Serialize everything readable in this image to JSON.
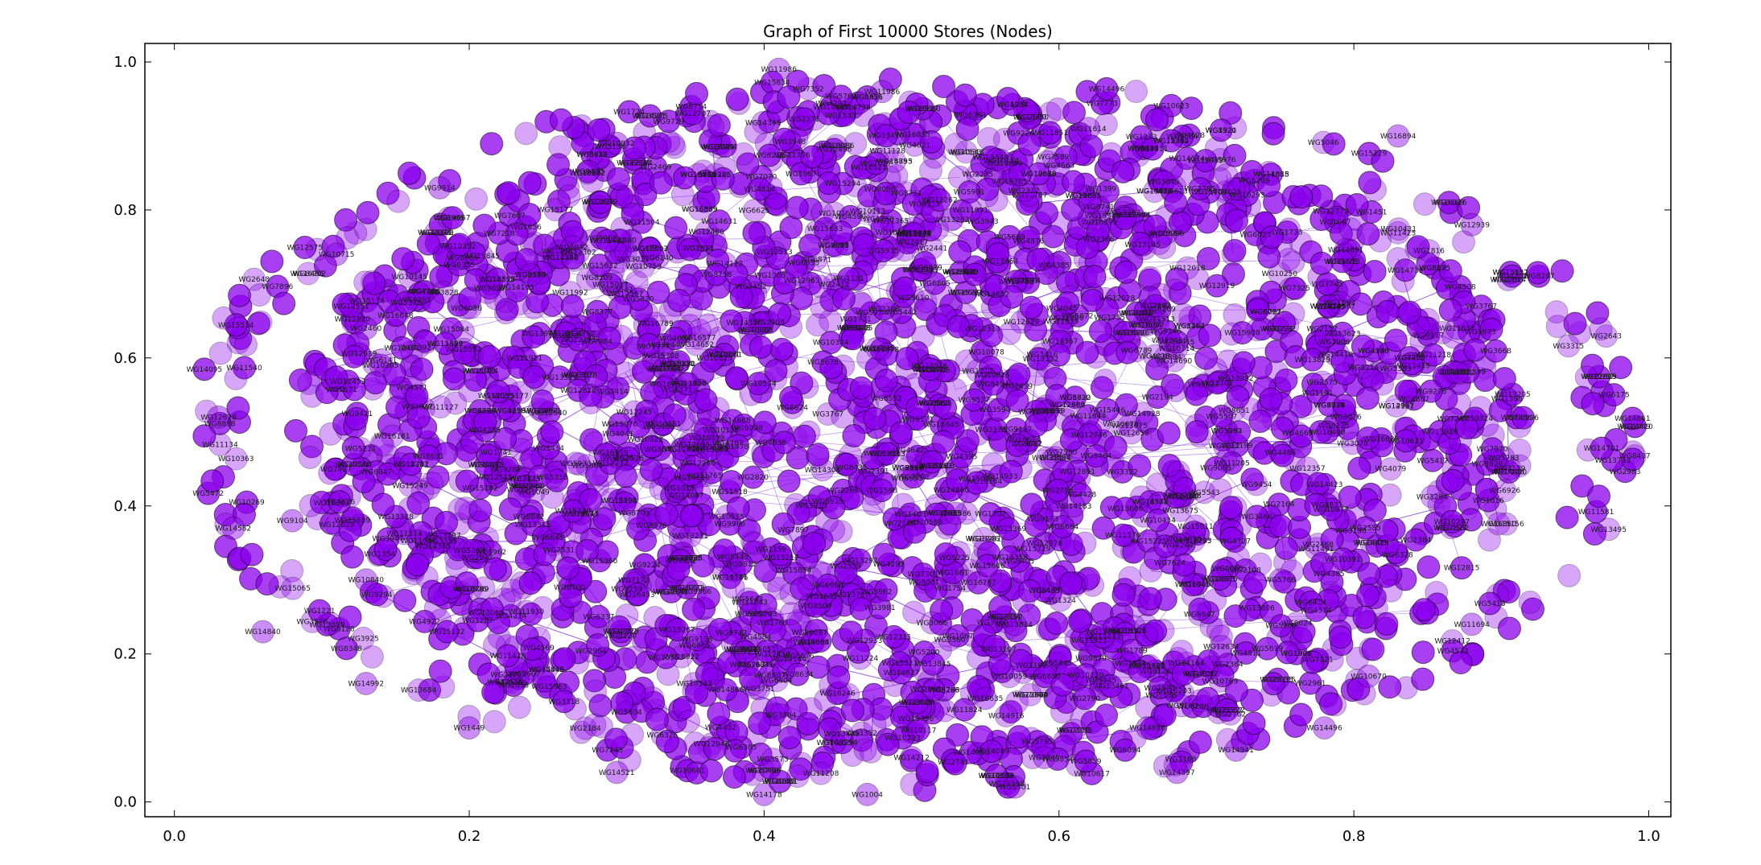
{
  "chart_data": {
    "type": "scatter",
    "title": "Graph of First 10000 Stores (Nodes)",
    "xlabel": "",
    "ylabel": "",
    "xlim": [
      -0.02,
      1.015
    ],
    "ylim": [
      -0.02,
      1.025
    ],
    "x_ticks": [
      0.0,
      0.2,
      0.4,
      0.6,
      0.8,
      1.0
    ],
    "x_tick_labels": [
      "0.0",
      "0.2",
      "0.4",
      "0.6",
      "0.8",
      "1.0"
    ],
    "y_ticks": [
      0.0,
      0.2,
      0.4,
      0.6,
      0.8,
      1.0
    ],
    "y_tick_labels": [
      "0.0",
      "0.2",
      "0.4",
      "0.6",
      "0.8",
      "1.0"
    ],
    "grid": false,
    "legend": "none",
    "node_color": "#8b00ee",
    "edge_color": "#7a1fd6",
    "node_edge_color": "#000000",
    "layout_center": [
      0.5,
      0.5
    ],
    "layout_shape": "ellipse",
    "node_label_prefix": "WG",
    "points": [
      {
        "x": 0.41,
        "y": 0.99,
        "label": "WG11986"
      },
      {
        "x": 0.3,
        "y": 0.89,
        "label": "WG10832"
      },
      {
        "x": 0.18,
        "y": 0.83,
        "label": "WG9914"
      },
      {
        "x": 0.11,
        "y": 0.74,
        "label": "WG10715"
      },
      {
        "x": 0.27,
        "y": 0.75,
        "label": "WG5942"
      },
      {
        "x": 0.17,
        "y": 0.69,
        "label": "WG7688"
      },
      {
        "x": 0.12,
        "y": 0.67,
        "label": "WG12551"
      },
      {
        "x": 0.13,
        "y": 0.64,
        "label": "WG2460"
      },
      {
        "x": 0.14,
        "y": 0.59,
        "label": "WG10305"
      },
      {
        "x": 0.48,
        "y": 0.96,
        "label": "WG11986"
      },
      {
        "x": 0.58,
        "y": 0.82,
        "label": "WG11787"
      },
      {
        "x": 0.54,
        "y": 0.8,
        "label": "WG11991"
      },
      {
        "x": 0.62,
        "y": 0.91,
        "label": "WG11614"
      },
      {
        "x": 0.6,
        "y": 0.86,
        "label": "WG4663"
      },
      {
        "x": 0.87,
        "y": 0.64,
        "label": "WG11637"
      },
      {
        "x": 0.87,
        "y": 0.58,
        "label": "WG10882"
      },
      {
        "x": 0.88,
        "y": 0.24,
        "label": "WG11694"
      },
      {
        "x": 0.81,
        "y": 0.17,
        "label": "WG10670"
      },
      {
        "x": 0.75,
        "y": 0.3,
        "label": "WG5766"
      },
      {
        "x": 0.78,
        "y": 0.1,
        "label": "WG14496"
      },
      {
        "x": 0.72,
        "y": 0.07,
        "label": "WG14941"
      },
      {
        "x": 0.61,
        "y": 0.4,
        "label": "WG14183"
      },
      {
        "x": 0.53,
        "y": 0.39,
        "label": "WG5586"
      },
      {
        "x": 0.59,
        "y": 0.06,
        "label": "WG7245"
      },
      {
        "x": 0.57,
        "y": 0.02,
        "label": "WG5301"
      },
      {
        "x": 0.5,
        "y": 0.06,
        "label": "WG14212"
      },
      {
        "x": 0.47,
        "y": 0.01,
        "label": "WG1004"
      },
      {
        "x": 0.4,
        "y": 0.01,
        "label": "WG14178"
      },
      {
        "x": 0.3,
        "y": 0.04,
        "label": "WG14521"
      },
      {
        "x": 0.2,
        "y": 0.1,
        "label": "WG1449"
      },
      {
        "x": 0.13,
        "y": 0.16,
        "label": "WG14992"
      },
      {
        "x": 0.06,
        "y": 0.23,
        "label": "WG14840"
      },
      {
        "x": 0.13,
        "y": 0.3,
        "label": "WG10840"
      },
      {
        "x": 0.2,
        "y": 0.34,
        "label": "WG5363"
      },
      {
        "x": 0.04,
        "y": 0.37,
        "label": "WG14582"
      },
      {
        "x": 0.08,
        "y": 0.38,
        "label": "WG9104"
      },
      {
        "x": 0.03,
        "y": 0.52,
        "label": "WG12628"
      },
      {
        "x": 0.66,
        "y": 0.1,
        "label": "WG14886"
      },
      {
        "x": 0.63,
        "y": 0.23,
        "label": "WG15804"
      },
      {
        "x": 0.71,
        "y": 0.21,
        "label": "WG12834"
      },
      {
        "x": 0.55,
        "y": 0.14,
        "label": "WG16635"
      },
      {
        "x": 0.57,
        "y": 0.24,
        "label": "WG13834"
      },
      {
        "x": 0.88,
        "y": 0.78,
        "label": "WG12939"
      },
      {
        "x": 0.83,
        "y": 0.9,
        "label": "WG16894"
      },
      {
        "x": 0.68,
        "y": 0.04,
        "label": "WG14397"
      }
    ]
  }
}
